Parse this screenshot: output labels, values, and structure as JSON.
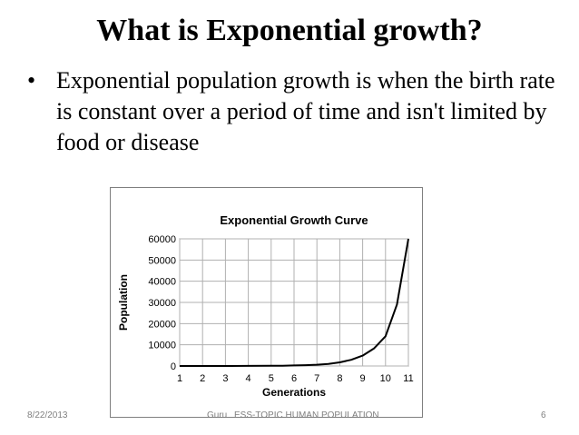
{
  "slide": {
    "title": "What is Exponential growth?",
    "bullet_symbol": "•",
    "bullet_text": "Exponential population growth is when the birth rate is constant over a period of time and isn't limited by food or disease"
  },
  "footer": {
    "date": "8/22/2013",
    "author": "Guru",
    "topic": "ESS-TOPIC HUMAN POPULATION",
    "page_number": "6"
  },
  "chart_data": {
    "type": "line",
    "title": "Exponential Growth Curve",
    "xlabel": "Generations",
    "ylabel": "Population",
    "x_ticks": [
      "1",
      "2",
      "3",
      "4",
      "5",
      "6",
      "7",
      "8",
      "9",
      "10",
      "11"
    ],
    "y_ticks": [
      "0",
      "10000",
      "20000",
      "30000",
      "40000",
      "50000",
      "60000"
    ],
    "xlim": [
      1,
      11
    ],
    "ylim": [
      0,
      60000
    ],
    "grid": true,
    "series": [
      {
        "x": [
          1,
          2,
          3,
          4,
          5,
          5.5,
          6,
          6.5,
          7,
          7.5,
          8,
          8.5,
          9,
          9.5,
          10,
          10.5,
          11
        ],
        "y": [
          0,
          0,
          0,
          50,
          100,
          150,
          250,
          400,
          600,
          1000,
          1700,
          2900,
          4900,
          8300,
          14000,
          29000,
          60000
        ]
      }
    ],
    "line_color": "#000000"
  }
}
